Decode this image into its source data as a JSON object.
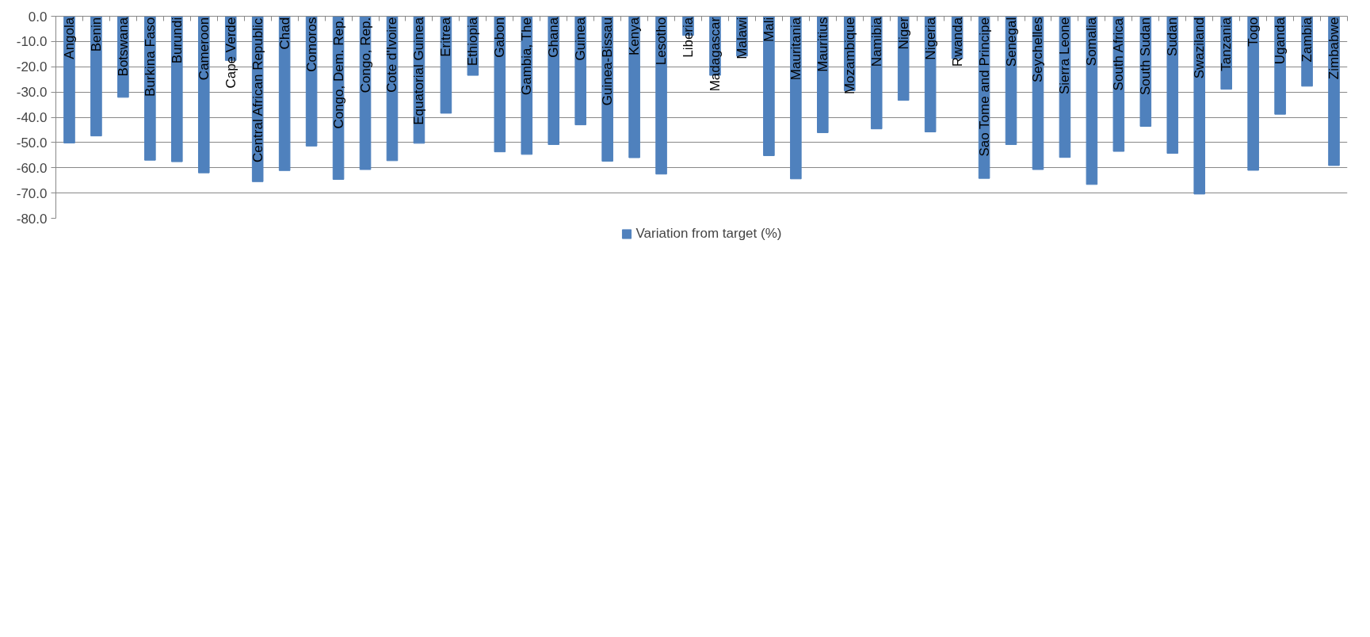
{
  "chart_data": {
    "type": "bar",
    "categories": [
      "Angola",
      "Benin",
      "Botswana",
      "Burkina Faso",
      "Burundi",
      "Cameroon",
      "Cape Verde",
      "Central African Republic",
      "Chad",
      "Comoros",
      "Congo, Dem. Rep.",
      "Congo, Rep.",
      "Cote d'Ivoire",
      "Equatorial Guinea",
      "Eritrea",
      "Ethiopia",
      "Gabon",
      "Gambia, The",
      "Ghana",
      "Guinea",
      "Guinea-Bissau",
      "Kenya",
      "Lesotho",
      "Liberia",
      "Madagascar",
      "Malawi",
      "Mali",
      "Mauritania",
      "Mauritius",
      "Mozambique",
      "Namibia",
      "Niger",
      "Nigeria",
      "Rwanda",
      "Sao Tome and Principe",
      "Senegal",
      "Seychelles",
      "Sierra Leone",
      "Somalia",
      "South Africa",
      "South Sudan",
      "Sudan",
      "Swaziland",
      "Tanzania",
      "Togo",
      "Uganda",
      "Zambia",
      "Zimbabwe"
    ],
    "series": [
      {
        "name": "Variation from target (%)",
        "color": "#4f81bd",
        "values": [
          -50.2,
          -47.4,
          -32.1,
          -57.0,
          -57.6,
          -62.0,
          -17.5,
          -65.5,
          -61.1,
          -51.4,
          -64.6,
          -60.7,
          -57.2,
          -50.3,
          -38.4,
          -23.4,
          -53.7,
          -54.7,
          -50.8,
          -43.0,
          -57.4,
          -56.0,
          -62.5,
          -7.6,
          -23.4,
          -15.8,
          -55.2,
          -64.4,
          -46.1,
          -29.5,
          -44.6,
          -33.3,
          -45.8,
          -16.8,
          -64.2,
          -50.8,
          -60.7,
          -55.9,
          -66.6,
          -53.5,
          -43.6,
          -54.3,
          -70.4,
          -28.9,
          -61.0,
          -38.8,
          -27.7,
          -59.1
        ]
      }
    ],
    "ylim": [
      -80,
      0
    ],
    "yticks": [
      {
        "value": -80,
        "label": "-80.0"
      },
      {
        "value": -70,
        "label": "-70.0"
      },
      {
        "value": -60,
        "label": "-60.0"
      },
      {
        "value": -50,
        "label": "-50.0"
      },
      {
        "value": -40,
        "label": "-40.0"
      },
      {
        "value": -30,
        "label": "-30.0"
      },
      {
        "value": -20,
        "label": "-20.0"
      },
      {
        "value": -10,
        "label": "-10.0"
      },
      {
        "value": 0,
        "label": "0.0"
      }
    ],
    "grid": "y",
    "legend": "bottom"
  }
}
